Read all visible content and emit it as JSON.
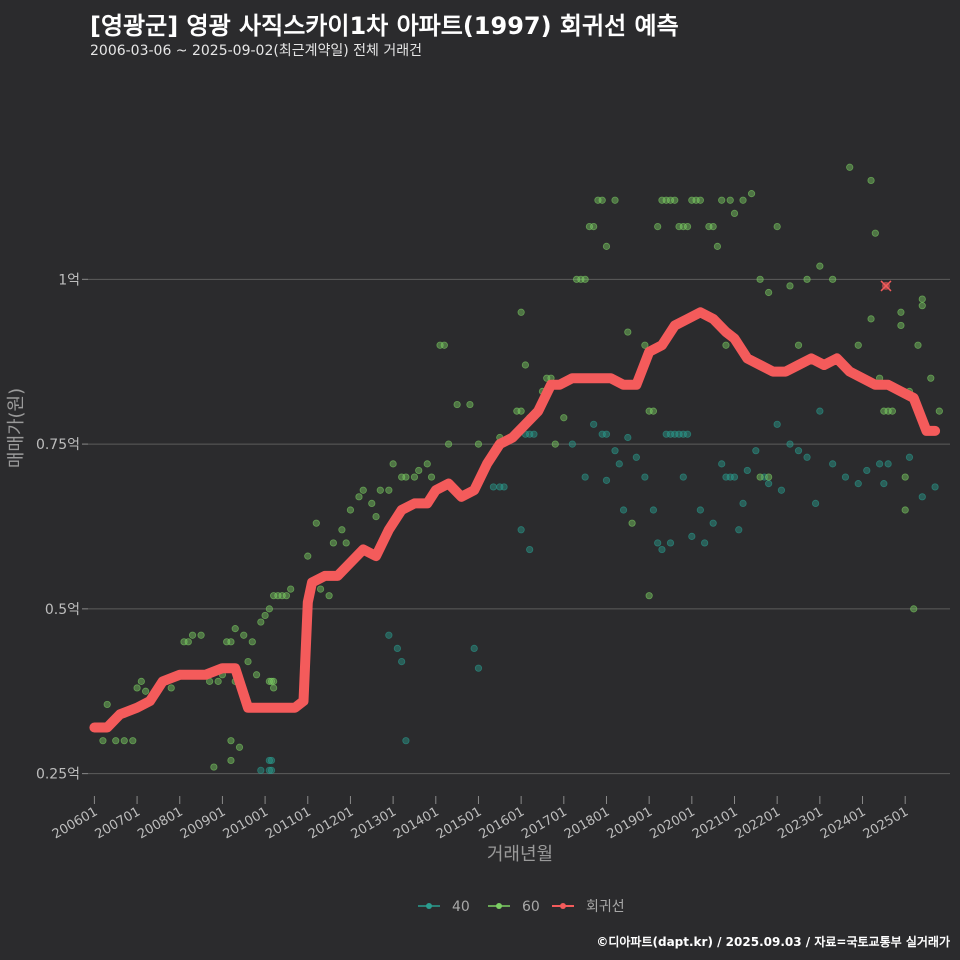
{
  "title": "[영광군] 영광 사직스카이1차 아파트(1997) 회귀선 예측",
  "subtitle": "2006-03-06 ~ 2025-09-02(최근계약일) 전체 거래건",
  "caption": "©디아파트(dapt.kr) / 2025.09.03 / 자료=국토교통부 실거래가",
  "colors": {
    "background": "#2b2b2d",
    "grid": "#5c5c5c",
    "s40": "#2a9d8f",
    "s60": "#7ccf63",
    "regression": "#f45b5b"
  },
  "chart_data": {
    "type": "scatter",
    "title": "[영광군] 영광 사직스카이1차 아파트(1997) 회귀선 예측",
    "xlabel": "거래년월",
    "ylabel": "매매가(원)",
    "xlim": [
      2005.85,
      2026.05
    ],
    "ylim": [
      0.21,
      1.31
    ],
    "y_unit": "억",
    "y_ticks": [
      {
        "value": 0.25,
        "label": "0.25억"
      },
      {
        "value": 0.5,
        "label": "0.5억"
      },
      {
        "value": 0.75,
        "label": "0.75억"
      },
      {
        "value": 1.0,
        "label": "1억"
      }
    ],
    "x_ticks": [
      {
        "value": 2006.0,
        "label": "200601"
      },
      {
        "value": 2007.0,
        "label": "200701"
      },
      {
        "value": 2008.0,
        "label": "200801"
      },
      {
        "value": 2009.0,
        "label": "200901"
      },
      {
        "value": 2010.0,
        "label": "201001"
      },
      {
        "value": 2011.0,
        "label": "201101"
      },
      {
        "value": 2012.0,
        "label": "201201"
      },
      {
        "value": 2013.0,
        "label": "201301"
      },
      {
        "value": 2014.0,
        "label": "201401"
      },
      {
        "value": 2015.0,
        "label": "201501"
      },
      {
        "value": 2016.0,
        "label": "201601"
      },
      {
        "value": 2017.0,
        "label": "201701"
      },
      {
        "value": 2018.0,
        "label": "201801"
      },
      {
        "value": 2019.0,
        "label": "201901"
      },
      {
        "value": 2020.0,
        "label": "202001"
      },
      {
        "value": 2021.0,
        "label": "202101"
      },
      {
        "value": 2022.0,
        "label": "202201"
      },
      {
        "value": 2023.0,
        "label": "202301"
      },
      {
        "value": 2024.0,
        "label": "202401"
      },
      {
        "value": 2025.0,
        "label": "202501"
      }
    ],
    "legend": [
      {
        "name": "40",
        "color": "#2a9d8f"
      },
      {
        "name": "60",
        "color": "#7ccf63"
      },
      {
        "name": "회귀선",
        "color": "#f45b5b"
      }
    ],
    "series": [
      {
        "name": "40",
        "color": "#2a9d8f",
        "points": [
          [
            2010.1,
            0.27
          ],
          [
            2010.1,
            0.255
          ],
          [
            2010.15,
            0.27
          ],
          [
            2010.15,
            0.255
          ],
          [
            2009.9,
            0.255
          ],
          [
            2012.9,
            0.46
          ],
          [
            2013.1,
            0.44
          ],
          [
            2013.2,
            0.42
          ],
          [
            2013.3,
            0.3
          ],
          [
            2014.9,
            0.44
          ],
          [
            2015.0,
            0.41
          ],
          [
            2015.35,
            0.685
          ],
          [
            2015.5,
            0.685
          ],
          [
            2015.6,
            0.685
          ],
          [
            2016.1,
            0.765
          ],
          [
            2016.2,
            0.765
          ],
          [
            2016.3,
            0.765
          ],
          [
            2016.0,
            0.62
          ],
          [
            2016.2,
            0.59
          ],
          [
            2017.7,
            0.78
          ],
          [
            2017.9,
            0.765
          ],
          [
            2018.0,
            0.765
          ],
          [
            2018.2,
            0.74
          ],
          [
            2018.0,
            0.695
          ],
          [
            2018.3,
            0.72
          ],
          [
            2018.5,
            0.76
          ],
          [
            2018.7,
            0.73
          ],
          [
            2018.9,
            0.7
          ],
          [
            2019.1,
            0.65
          ],
          [
            2019.2,
            0.6
          ],
          [
            2019.3,
            0.59
          ],
          [
            2019.4,
            0.765
          ],
          [
            2019.5,
            0.765
          ],
          [
            2019.6,
            0.765
          ],
          [
            2019.7,
            0.765
          ],
          [
            2019.8,
            0.765
          ],
          [
            2019.9,
            0.765
          ],
          [
            2019.5,
            0.6
          ],
          [
            2019.8,
            0.7
          ],
          [
            2020.0,
            0.61
          ],
          [
            2020.2,
            0.65
          ],
          [
            2020.3,
            0.6
          ],
          [
            2020.5,
            0.63
          ],
          [
            2020.7,
            0.72
          ],
          [
            2020.8,
            0.7
          ],
          [
            2020.9,
            0.7
          ],
          [
            2021.0,
            0.7
          ],
          [
            2021.1,
            0.62
          ],
          [
            2021.3,
            0.71
          ],
          [
            2021.5,
            0.74
          ],
          [
            2021.7,
            0.7
          ],
          [
            2021.8,
            0.69
          ],
          [
            2022.0,
            0.78
          ],
          [
            2022.1,
            0.68
          ],
          [
            2022.3,
            0.75
          ],
          [
            2022.5,
            0.74
          ],
          [
            2022.7,
            0.73
          ],
          [
            2023.0,
            0.8
          ],
          [
            2023.3,
            0.72
          ],
          [
            2023.6,
            0.7
          ],
          [
            2023.9,
            0.69
          ],
          [
            2024.1,
            0.71
          ],
          [
            2024.4,
            0.72
          ],
          [
            2024.5,
            0.69
          ],
          [
            2024.6,
            0.72
          ],
          [
            2025.1,
            0.73
          ],
          [
            2025.4,
            0.67
          ],
          [
            2025.7,
            0.685
          ],
          [
            2021.2,
            0.66
          ],
          [
            2017.2,
            0.75
          ],
          [
            2017.5,
            0.7
          ],
          [
            2022.9,
            0.66
          ],
          [
            2018.4,
            0.65
          ]
        ]
      },
      {
        "name": "60",
        "color": "#7ccf63",
        "points": [
          [
            2006.2,
            0.3
          ],
          [
            2006.5,
            0.3
          ],
          [
            2006.7,
            0.3
          ],
          [
            2006.9,
            0.3
          ],
          [
            2006.3,
            0.355
          ],
          [
            2006.7,
            0.34
          ],
          [
            2007.0,
            0.38
          ],
          [
            2007.1,
            0.39
          ],
          [
            2007.2,
            0.375
          ],
          [
            2007.5,
            0.38
          ],
          [
            2007.7,
            0.39
          ],
          [
            2007.8,
            0.38
          ],
          [
            2008.0,
            0.4
          ],
          [
            2008.1,
            0.45
          ],
          [
            2008.2,
            0.45
          ],
          [
            2008.3,
            0.46
          ],
          [
            2008.5,
            0.46
          ],
          [
            2008.7,
            0.39
          ],
          [
            2008.9,
            0.39
          ],
          [
            2009.0,
            0.4
          ],
          [
            2009.1,
            0.45
          ],
          [
            2009.2,
            0.45
          ],
          [
            2009.3,
            0.47
          ],
          [
            2009.5,
            0.46
          ],
          [
            2009.7,
            0.45
          ],
          [
            2009.9,
            0.48
          ],
          [
            2010.0,
            0.49
          ],
          [
            2010.1,
            0.5
          ],
          [
            2010.2,
            0.52
          ],
          [
            2010.3,
            0.52
          ],
          [
            2010.4,
            0.52
          ],
          [
            2010.5,
            0.52
          ],
          [
            2010.1,
            0.39
          ],
          [
            2010.15,
            0.39
          ],
          [
            2010.2,
            0.39
          ],
          [
            2010.2,
            0.38
          ],
          [
            2009.8,
            0.4
          ],
          [
            2009.6,
            0.42
          ],
          [
            2009.3,
            0.39
          ],
          [
            2008.8,
            0.26
          ],
          [
            2009.2,
            0.27
          ],
          [
            2009.4,
            0.29
          ],
          [
            2009.2,
            0.3
          ],
          [
            2010.6,
            0.53
          ],
          [
            2011.0,
            0.58
          ],
          [
            2011.2,
            0.63
          ],
          [
            2011.3,
            0.53
          ],
          [
            2011.5,
            0.52
          ],
          [
            2011.6,
            0.6
          ],
          [
            2011.8,
            0.62
          ],
          [
            2011.9,
            0.6
          ],
          [
            2012.0,
            0.65
          ],
          [
            2012.2,
            0.67
          ],
          [
            2012.3,
            0.68
          ],
          [
            2012.5,
            0.66
          ],
          [
            2012.6,
            0.64
          ],
          [
            2012.7,
            0.68
          ],
          [
            2012.9,
            0.68
          ],
          [
            2013.0,
            0.72
          ],
          [
            2013.2,
            0.7
          ],
          [
            2013.3,
            0.7
          ],
          [
            2013.5,
            0.7
          ],
          [
            2013.6,
            0.71
          ],
          [
            2013.8,
            0.72
          ],
          [
            2013.9,
            0.7
          ],
          [
            2014.0,
            0.68
          ],
          [
            2014.1,
            0.9
          ],
          [
            2014.2,
            0.9
          ],
          [
            2014.3,
            0.75
          ],
          [
            2014.5,
            0.81
          ],
          [
            2014.8,
            0.81
          ],
          [
            2015.0,
            0.75
          ],
          [
            2015.2,
            0.72
          ],
          [
            2015.5,
            0.76
          ],
          [
            2015.9,
            0.8
          ],
          [
            2016.0,
            0.8
          ],
          [
            2016.1,
            0.87
          ],
          [
            2016.2,
            0.79
          ],
          [
            2016.5,
            0.83
          ],
          [
            2016.6,
            0.85
          ],
          [
            2016.7,
            0.85
          ],
          [
            2016.8,
            0.75
          ],
          [
            2017.0,
            0.79
          ],
          [
            2017.2,
            0.85
          ],
          [
            2017.3,
            1.0
          ],
          [
            2017.4,
            1.0
          ],
          [
            2017.5,
            1.0
          ],
          [
            2017.6,
            1.08
          ],
          [
            2017.7,
            1.08
          ],
          [
            2017.8,
            1.12
          ],
          [
            2017.9,
            1.12
          ],
          [
            2018.0,
            1.05
          ],
          [
            2018.2,
            1.12
          ],
          [
            2018.5,
            0.92
          ],
          [
            2018.9,
            0.9
          ],
          [
            2019.0,
            0.8
          ],
          [
            2019.1,
            0.8
          ],
          [
            2019.2,
            1.08
          ],
          [
            2019.3,
            1.12
          ],
          [
            2019.4,
            1.12
          ],
          [
            2019.5,
            1.12
          ],
          [
            2019.6,
            1.12
          ],
          [
            2019.7,
            1.08
          ],
          [
            2019.8,
            1.08
          ],
          [
            2019.9,
            1.08
          ],
          [
            2020.0,
            1.12
          ],
          [
            2020.1,
            1.12
          ],
          [
            2020.2,
            1.12
          ],
          [
            2020.4,
            1.08
          ],
          [
            2020.5,
            1.08
          ],
          [
            2020.7,
            1.12
          ],
          [
            2020.9,
            1.12
          ],
          [
            2021.0,
            1.1
          ],
          [
            2021.2,
            1.12
          ],
          [
            2021.4,
            1.13
          ],
          [
            2021.6,
            1.0
          ],
          [
            2021.8,
            0.98
          ],
          [
            2022.0,
            1.08
          ],
          [
            2022.3,
            0.99
          ],
          [
            2022.5,
            0.9
          ],
          [
            2022.7,
            1.0
          ],
          [
            2023.0,
            1.02
          ],
          [
            2023.3,
            1.0
          ],
          [
            2023.7,
            1.17
          ],
          [
            2023.9,
            0.9
          ],
          [
            2024.2,
            0.94
          ],
          [
            2024.4,
            0.85
          ],
          [
            2024.5,
            0.8
          ],
          [
            2024.6,
            0.8
          ],
          [
            2024.7,
            0.8
          ],
          [
            2024.9,
            0.95
          ],
          [
            2024.9,
            0.93
          ],
          [
            2025.1,
            0.83
          ],
          [
            2025.3,
            0.9
          ],
          [
            2025.4,
            0.97
          ],
          [
            2025.4,
            0.96
          ],
          [
            2025.6,
            0.85
          ],
          [
            2025.8,
            0.8
          ],
          [
            2025.0,
            0.7
          ],
          [
            2025.0,
            0.65
          ],
          [
            2025.2,
            0.5
          ],
          [
            2024.2,
            1.15
          ],
          [
            2024.3,
            1.07
          ],
          [
            2021.8,
            0.7
          ],
          [
            2021.6,
            0.7
          ],
          [
            2020.6,
            1.05
          ],
          [
            2020.8,
            0.9
          ],
          [
            2018.6,
            0.63
          ],
          [
            2019.0,
            0.52
          ],
          [
            2016.0,
            0.95
          ]
        ]
      }
    ],
    "regression": [
      [
        2006.0,
        0.32
      ],
      [
        2006.3,
        0.32
      ],
      [
        2006.6,
        0.34
      ],
      [
        2007.0,
        0.35
      ],
      [
        2007.3,
        0.36
      ],
      [
        2007.6,
        0.39
      ],
      [
        2008.0,
        0.4
      ],
      [
        2008.3,
        0.4
      ],
      [
        2008.6,
        0.4
      ],
      [
        2009.0,
        0.41
      ],
      [
        2009.3,
        0.41
      ],
      [
        2009.6,
        0.35
      ],
      [
        2010.0,
        0.35
      ],
      [
        2010.3,
        0.35
      ],
      [
        2010.7,
        0.35
      ],
      [
        2010.9,
        0.36
      ],
      [
        2011.0,
        0.51
      ],
      [
        2011.1,
        0.54
      ],
      [
        2011.4,
        0.55
      ],
      [
        2011.7,
        0.55
      ],
      [
        2012.0,
        0.57
      ],
      [
        2012.3,
        0.59
      ],
      [
        2012.6,
        0.58
      ],
      [
        2012.9,
        0.62
      ],
      [
        2013.2,
        0.65
      ],
      [
        2013.5,
        0.66
      ],
      [
        2013.8,
        0.66
      ],
      [
        2014.0,
        0.68
      ],
      [
        2014.3,
        0.69
      ],
      [
        2014.6,
        0.67
      ],
      [
        2014.9,
        0.68
      ],
      [
        2015.2,
        0.72
      ],
      [
        2015.5,
        0.75
      ],
      [
        2015.8,
        0.76
      ],
      [
        2016.1,
        0.78
      ],
      [
        2016.4,
        0.8
      ],
      [
        2016.7,
        0.84
      ],
      [
        2016.9,
        0.84
      ],
      [
        2017.2,
        0.85
      ],
      [
        2017.5,
        0.85
      ],
      [
        2017.8,
        0.85
      ],
      [
        2018.1,
        0.85
      ],
      [
        2018.4,
        0.84
      ],
      [
        2018.7,
        0.84
      ],
      [
        2019.0,
        0.89
      ],
      [
        2019.3,
        0.9
      ],
      [
        2019.6,
        0.93
      ],
      [
        2019.9,
        0.94
      ],
      [
        2020.2,
        0.95
      ],
      [
        2020.5,
        0.94
      ],
      [
        2020.8,
        0.92
      ],
      [
        2021.0,
        0.91
      ],
      [
        2021.3,
        0.88
      ],
      [
        2021.6,
        0.87
      ],
      [
        2021.9,
        0.86
      ],
      [
        2022.2,
        0.86
      ],
      [
        2022.5,
        0.87
      ],
      [
        2022.8,
        0.88
      ],
      [
        2023.1,
        0.87
      ],
      [
        2023.4,
        0.88
      ],
      [
        2023.7,
        0.86
      ],
      [
        2024.0,
        0.85
      ],
      [
        2024.3,
        0.84
      ],
      [
        2024.6,
        0.84
      ],
      [
        2024.9,
        0.83
      ],
      [
        2025.2,
        0.82
      ],
      [
        2025.5,
        0.77
      ],
      [
        2025.7,
        0.77
      ]
    ],
    "prediction_marker": [
      2024.55,
      0.99
    ]
  }
}
